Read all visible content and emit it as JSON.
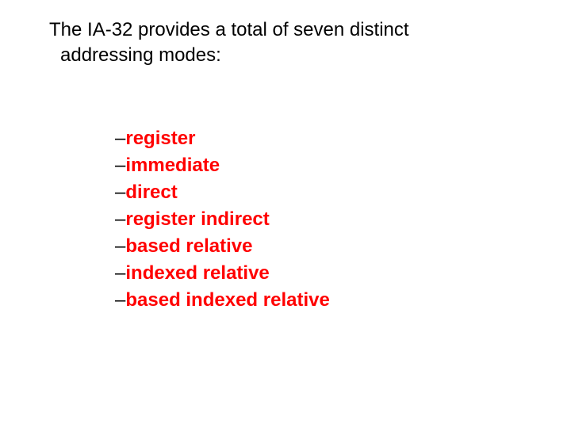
{
  "intro": {
    "line1": "The IA-32 provides a total of seven distinct",
    "line2": "addressing modes:"
  },
  "list": {
    "items": [
      "register",
      "immediate",
      "direct",
      "register indirect",
      "based relative",
      "indexed relative",
      "based indexed relative"
    ]
  },
  "colors": {
    "text": "#000000",
    "highlight": "#ff0000",
    "background": "#ffffff"
  },
  "typography": {
    "intro_fontsize": 24,
    "list_fontsize": 24,
    "list_fontweight": "bold",
    "font_family": "Verdana"
  }
}
